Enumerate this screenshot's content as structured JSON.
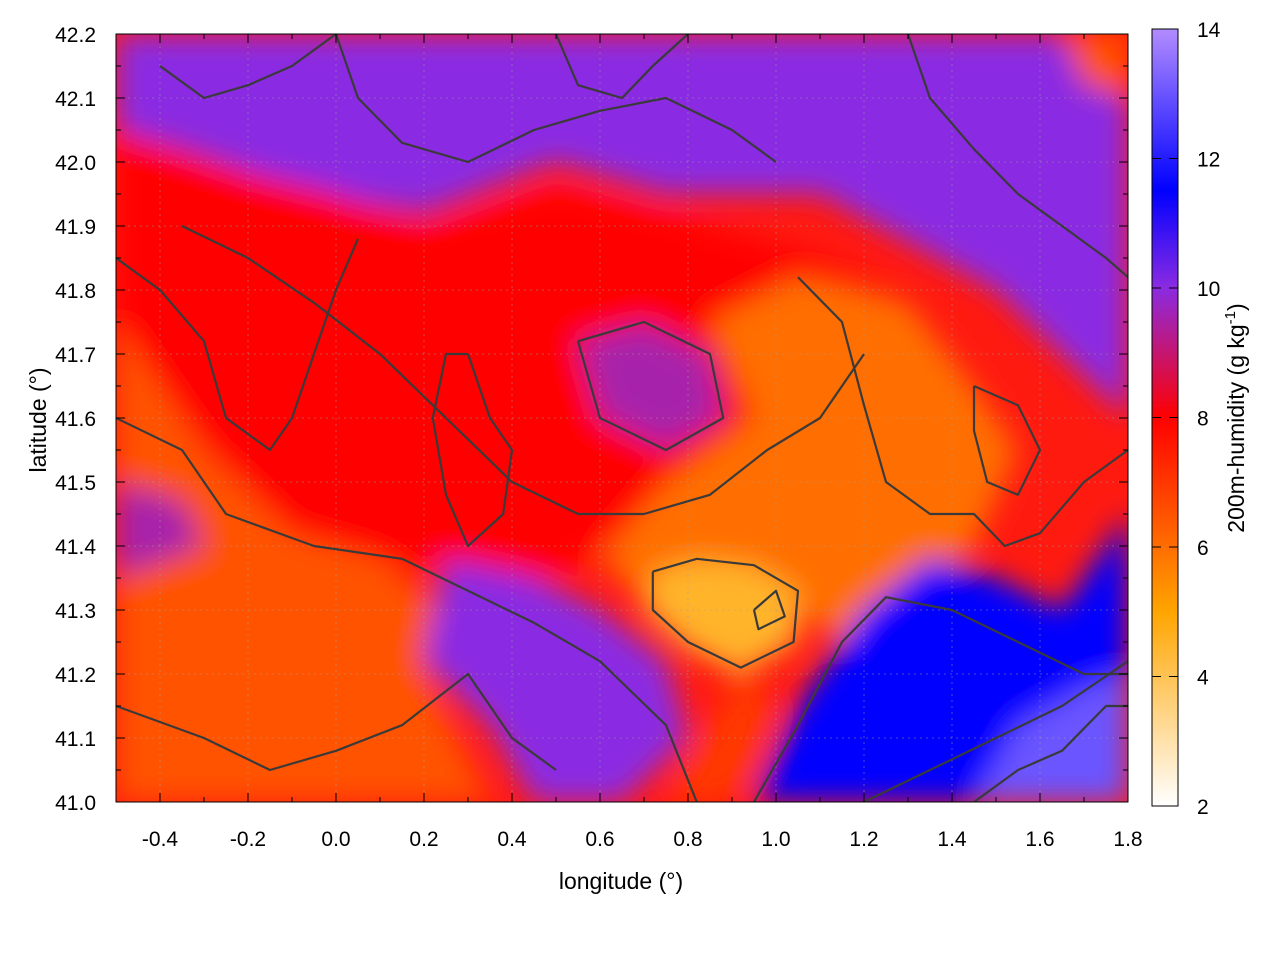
{
  "chart_data": {
    "type": "heatmap",
    "title": "",
    "xlabel": "longitude (°)",
    "ylabel": "latitude (°)",
    "xlim": [
      -0.5,
      1.8
    ],
    "ylim": [
      41.0,
      42.2
    ],
    "x_ticks": [
      -0.4,
      -0.2,
      0.0,
      0.2,
      0.4,
      0.6,
      0.8,
      1.0,
      1.2,
      1.4,
      1.6,
      1.8
    ],
    "x_tick_labels": [
      "-0.4",
      "-0.2",
      "0.0",
      "0.2",
      "0.4",
      "0.6",
      "0.8",
      "1.0",
      "1.2",
      "1.4",
      "1.6",
      "1.8"
    ],
    "y_ticks": [
      41.0,
      41.1,
      41.2,
      41.3,
      41.4,
      41.5,
      41.6,
      41.7,
      41.8,
      41.9,
      42.0,
      42.1,
      42.2
    ],
    "y_tick_labels": [
      "41.0",
      "41.1",
      "41.2",
      "41.3",
      "41.4",
      "41.5",
      "41.6",
      "41.7",
      "41.8",
      "41.9",
      "42.0",
      "42.1",
      "42.2"
    ],
    "grid": true,
    "contours": true,
    "colorbar": {
      "label": "200m-humidity (g kg",
      "label_superscript": "-1",
      "label_suffix": ")",
      "range": [
        2,
        14
      ],
      "ticks": [
        2,
        4,
        6,
        8,
        10,
        12,
        14
      ],
      "tick_labels": [
        "2",
        "4",
        "6",
        "8",
        "10",
        "12",
        "14"
      ],
      "colormap": [
        {
          "value": 2,
          "color": "#ffffff"
        },
        {
          "value": 5,
          "color": "#ffa500"
        },
        {
          "value": 8,
          "color": "#ff0000"
        },
        {
          "value": 10,
          "color": "#8a2be2"
        },
        {
          "value": 11.5,
          "color": "#0000ff"
        },
        {
          "value": 14,
          "color": "#b28cff"
        }
      ]
    },
    "regions": [
      {
        "value": 10.0,
        "poly": [
          [
            -0.5,
            42.2
          ],
          [
            1.8,
            42.2
          ],
          [
            1.8,
            41.6
          ],
          [
            1.5,
            41.8
          ],
          [
            1.1,
            41.95
          ],
          [
            0.75,
            41.95
          ],
          [
            0.5,
            42.0
          ],
          [
            0.2,
            41.92
          ],
          [
            -0.05,
            41.95
          ],
          [
            -0.35,
            42.02
          ],
          [
            -0.5,
            42.05
          ]
        ]
      },
      {
        "value": 8.0,
        "poly": [
          [
            -0.5,
            42.05
          ],
          [
            -0.3,
            42.0
          ],
          [
            0.0,
            41.95
          ],
          [
            0.2,
            41.9
          ],
          [
            0.5,
            41.96
          ],
          [
            0.75,
            41.92
          ],
          [
            0.95,
            41.88
          ],
          [
            1.1,
            41.85
          ],
          [
            1.3,
            41.78
          ],
          [
            1.25,
            41.55
          ],
          [
            1.05,
            41.5
          ],
          [
            0.7,
            41.45
          ],
          [
            0.5,
            41.35
          ],
          [
            0.3,
            41.35
          ],
          [
            0.1,
            41.38
          ],
          [
            -0.1,
            41.42
          ],
          [
            -0.35,
            41.6
          ],
          [
            -0.5,
            41.75
          ]
        ]
      },
      {
        "value": 6.5,
        "poly": [
          [
            -0.5,
            41.75
          ],
          [
            -0.3,
            41.55
          ],
          [
            -0.1,
            41.42
          ],
          [
            0.1,
            41.38
          ],
          [
            0.25,
            41.3
          ],
          [
            0.2,
            41.2
          ],
          [
            0.35,
            41.0
          ],
          [
            -0.5,
            41.0
          ]
        ]
      },
      {
        "value": 9.5,
        "poly": [
          [
            0.55,
            41.72
          ],
          [
            0.7,
            41.75
          ],
          [
            0.85,
            41.7
          ],
          [
            0.88,
            41.6
          ],
          [
            0.75,
            41.55
          ],
          [
            0.6,
            41.6
          ]
        ]
      },
      {
        "value": 9.5,
        "poly": [
          [
            -0.5,
            41.5
          ],
          [
            -0.35,
            41.47
          ],
          [
            -0.3,
            41.4
          ],
          [
            -0.5,
            41.35
          ]
        ]
      },
      {
        "value": 6.0,
        "poly": [
          [
            0.85,
            41.75
          ],
          [
            1.05,
            41.82
          ],
          [
            1.3,
            41.78
          ],
          [
            1.45,
            41.65
          ],
          [
            1.55,
            41.55
          ],
          [
            1.45,
            41.4
          ],
          [
            1.3,
            41.32
          ],
          [
            1.15,
            41.25
          ],
          [
            1.05,
            41.3
          ],
          [
            0.9,
            41.35
          ],
          [
            0.75,
            41.28
          ],
          [
            0.6,
            41.38
          ],
          [
            0.75,
            41.5
          ],
          [
            0.95,
            41.6
          ]
        ]
      },
      {
        "value": 4.5,
        "poly": [
          [
            0.72,
            41.36
          ],
          [
            0.82,
            41.38
          ],
          [
            0.95,
            41.37
          ],
          [
            1.05,
            41.33
          ],
          [
            1.05,
            41.25
          ],
          [
            0.92,
            41.2
          ],
          [
            0.8,
            41.24
          ],
          [
            0.7,
            41.3
          ]
        ]
      },
      {
        "value": 10.0,
        "poly": [
          [
            0.25,
            41.38
          ],
          [
            0.45,
            41.35
          ],
          [
            0.6,
            41.3
          ],
          [
            0.75,
            41.22
          ],
          [
            0.8,
            41.1
          ],
          [
            0.65,
            41.0
          ],
          [
            0.45,
            41.0
          ],
          [
            0.35,
            41.12
          ],
          [
            0.2,
            41.22
          ]
        ]
      },
      {
        "value": 11.5,
        "poly": [
          [
            0.95,
            41.0
          ],
          [
            1.05,
            41.15
          ],
          [
            1.2,
            41.3
          ],
          [
            1.35,
            41.38
          ],
          [
            1.5,
            41.35
          ],
          [
            1.65,
            41.3
          ],
          [
            1.8,
            41.45
          ],
          [
            1.8,
            41.0
          ]
        ]
      },
      {
        "value": 13.0,
        "poly": [
          [
            1.45,
            41.0
          ],
          [
            1.55,
            41.12
          ],
          [
            1.7,
            41.18
          ],
          [
            1.8,
            41.2
          ],
          [
            1.8,
            41.0
          ]
        ]
      },
      {
        "value": 7.0,
        "poly": [
          [
            0.75,
            41.0
          ],
          [
            0.85,
            41.12
          ],
          [
            0.92,
            41.2
          ],
          [
            1.0,
            41.15
          ],
          [
            0.95,
            41.05
          ],
          [
            0.9,
            41.0
          ]
        ]
      },
      {
        "value": 6.5,
        "poly": [
          [
            1.65,
            42.2
          ],
          [
            1.8,
            42.2
          ],
          [
            1.8,
            42.1
          ],
          [
            1.7,
            42.12
          ]
        ]
      }
    ],
    "contour_lines": [
      [
        [
          -0.5,
          41.6
        ],
        [
          -0.35,
          41.55
        ],
        [
          -0.25,
          41.45
        ],
        [
          -0.05,
          41.4
        ],
        [
          0.15,
          41.38
        ],
        [
          0.3,
          41.33
        ],
        [
          0.45,
          41.28
        ],
        [
          0.6,
          41.22
        ],
        [
          0.75,
          41.12
        ],
        [
          0.82,
          41.0
        ]
      ],
      [
        [
          -0.35,
          41.9
        ],
        [
          -0.2,
          41.85
        ],
        [
          -0.05,
          41.78
        ],
        [
          0.1,
          41.7
        ],
        [
          0.25,
          41.6
        ],
        [
          0.4,
          41.5
        ],
        [
          0.55,
          41.45
        ],
        [
          0.7,
          41.45
        ],
        [
          0.85,
          41.48
        ],
        [
          0.98,
          41.55
        ],
        [
          1.1,
          41.6
        ],
        [
          1.2,
          41.7
        ]
      ],
      [
        [
          0.0,
          42.2
        ],
        [
          0.05,
          42.1
        ],
        [
          0.15,
          42.03
        ],
        [
          0.3,
          42.0
        ],
        [
          0.45,
          42.05
        ],
        [
          0.6,
          42.08
        ],
        [
          0.75,
          42.1
        ],
        [
          0.9,
          42.05
        ],
        [
          1.0,
          42.0
        ]
      ],
      [
        [
          1.05,
          41.82
        ],
        [
          1.15,
          41.75
        ],
        [
          1.2,
          41.62
        ],
        [
          1.25,
          41.5
        ],
        [
          1.35,
          41.45
        ],
        [
          1.45,
          41.45
        ],
        [
          1.52,
          41.4
        ],
        [
          1.6,
          41.42
        ],
        [
          1.7,
          41.5
        ],
        [
          1.8,
          41.55
        ]
      ],
      [
        [
          0.95,
          41.0
        ],
        [
          1.05,
          41.12
        ],
        [
          1.15,
          41.25
        ],
        [
          1.25,
          41.32
        ],
        [
          1.4,
          41.3
        ],
        [
          1.55,
          41.25
        ],
        [
          1.7,
          41.2
        ],
        [
          1.8,
          41.2
        ]
      ],
      [
        [
          1.2,
          41.0
        ],
        [
          1.35,
          41.05
        ],
        [
          1.5,
          41.1
        ],
        [
          1.65,
          41.15
        ],
        [
          1.8,
          41.22
        ]
      ],
      [
        [
          -0.5,
          41.15
        ],
        [
          -0.3,
          41.1
        ],
        [
          -0.15,
          41.05
        ],
        [
          0.0,
          41.08
        ],
        [
          0.15,
          41.12
        ],
        [
          0.3,
          41.2
        ],
        [
          0.4,
          41.1
        ],
        [
          0.5,
          41.05
        ]
      ],
      [
        [
          0.72,
          41.36
        ],
        [
          0.82,
          41.38
        ],
        [
          0.95,
          41.37
        ],
        [
          1.05,
          41.33
        ],
        [
          1.04,
          41.25
        ],
        [
          0.92,
          41.21
        ],
        [
          0.8,
          41.25
        ],
        [
          0.72,
          41.3
        ],
        [
          0.72,
          41.36
        ]
      ],
      [
        [
          0.95,
          41.3
        ],
        [
          1.0,
          41.33
        ],
        [
          1.02,
          41.29
        ],
        [
          0.96,
          41.27
        ],
        [
          0.95,
          41.3
        ]
      ],
      [
        [
          0.55,
          41.72
        ],
        [
          0.7,
          41.75
        ],
        [
          0.85,
          41.7
        ],
        [
          0.88,
          41.6
        ],
        [
          0.75,
          41.55
        ],
        [
          0.6,
          41.6
        ],
        [
          0.55,
          41.72
        ]
      ],
      [
        [
          1.45,
          41.65
        ],
        [
          1.55,
          41.62
        ],
        [
          1.6,
          41.55
        ],
        [
          1.55,
          41.48
        ],
        [
          1.48,
          41.5
        ],
        [
          1.45,
          41.58
        ],
        [
          1.45,
          41.65
        ]
      ],
      [
        [
          1.3,
          42.2
        ],
        [
          1.35,
          42.1
        ],
        [
          1.45,
          42.02
        ],
        [
          1.55,
          41.95
        ],
        [
          1.65,
          41.9
        ],
        [
          1.75,
          41.85
        ],
        [
          1.8,
          41.82
        ]
      ],
      [
        [
          -0.5,
          41.85
        ],
        [
          -0.4,
          41.8
        ],
        [
          -0.3,
          41.72
        ],
        [
          -0.25,
          41.6
        ],
        [
          -0.15,
          41.55
        ],
        [
          -0.1,
          41.6
        ],
        [
          -0.05,
          41.7
        ],
        [
          0.0,
          41.8
        ],
        [
          0.05,
          41.88
        ]
      ],
      [
        [
          0.3,
          41.7
        ],
        [
          0.35,
          41.6
        ],
        [
          0.4,
          41.55
        ],
        [
          0.38,
          41.45
        ],
        [
          0.3,
          41.4
        ],
        [
          0.25,
          41.48
        ],
        [
          0.22,
          41.6
        ],
        [
          0.25,
          41.7
        ],
        [
          0.3,
          41.7
        ]
      ],
      [
        [
          -0.4,
          42.15
        ],
        [
          -0.3,
          42.1
        ],
        [
          -0.2,
          42.12
        ],
        [
          -0.1,
          42.15
        ],
        [
          0.0,
          42.2
        ]
      ],
      [
        [
          0.5,
          42.2
        ],
        [
          0.55,
          42.12
        ],
        [
          0.65,
          42.1
        ],
        [
          0.72,
          42.15
        ],
        [
          0.8,
          42.2
        ]
      ],
      [
        [
          1.45,
          41.0
        ],
        [
          1.55,
          41.05
        ],
        [
          1.65,
          41.08
        ],
        [
          1.75,
          41.15
        ],
        [
          1.8,
          41.15
        ]
      ]
    ]
  }
}
